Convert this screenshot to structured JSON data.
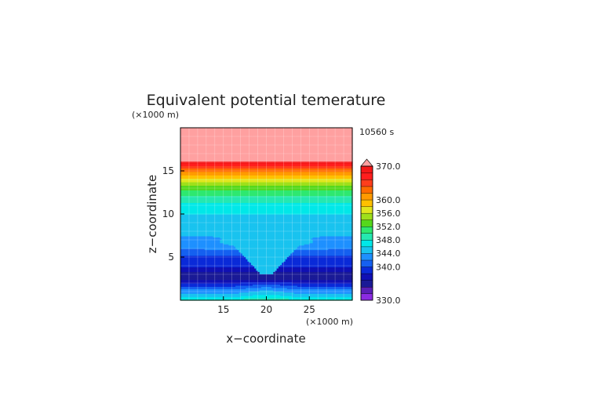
{
  "chart_data": {
    "type": "heatmap",
    "title": "Equivalent potential temerature",
    "time_label": "10560 s",
    "xlabel": "x−coordinate",
    "ylabel": "z−coordinate",
    "x_unit": "(×1000 m)",
    "y_unit": "(×1000 m)",
    "xlim": [
      10,
      30
    ],
    "ylim": [
      0,
      20
    ],
    "x_ticks": [
      15,
      20,
      25
    ],
    "y_ticks": [
      5,
      10,
      15
    ],
    "grid": true,
    "colorbar": {
      "min": 330.0,
      "max": 370.0,
      "step": 2.0,
      "labels": [
        "370.0",
        "360.0",
        "356.0",
        "352.0",
        "348.0",
        "344.0",
        "340.0",
        "330.0"
      ],
      "label_values": [
        370,
        360,
        356,
        352,
        348,
        344,
        340,
        330
      ],
      "colors": [
        "#8b2be2",
        "#5a1fb8",
        "#1a1a96",
        "#1010b4",
        "#0a2ad8",
        "#1560f0",
        "#1e90ff",
        "#19c3ef",
        "#00e8e8",
        "#25e8b0",
        "#2ee870",
        "#55d81c",
        "#9fe01b",
        "#e0e61e",
        "#ffc000",
        "#ff9a00",
        "#ff6a00",
        "#ff3e1c",
        "#ff1e1e",
        "#f51818",
        "#ffa0a0"
      ]
    },
    "profile_z": [
      0,
      0.4,
      0.8,
      1.3,
      1.8,
      2.4,
      2.9,
      3.4,
      3.9,
      4.5,
      5.2,
      6.0,
      6.8,
      7.5,
      8.3,
      9.2,
      10.0,
      11.0,
      11.6,
      12.2,
      12.8,
      13.3,
      13.8,
      14.4,
      15.0,
      15.6,
      16.2,
      20.0
    ],
    "profile_theta": [
      349,
      346,
      344,
      342,
      339,
      336,
      335,
      336,
      338,
      339,
      340,
      342,
      343,
      344,
      345,
      345.5,
      346,
      347,
      348.5,
      350,
      352,
      354,
      356,
      359,
      362,
      366,
      370,
      372
    ],
    "center_plume": {
      "x_center": 20,
      "theta_value": 345,
      "note": "cyan region around x=20 extending between z=3 and z=7"
    }
  }
}
